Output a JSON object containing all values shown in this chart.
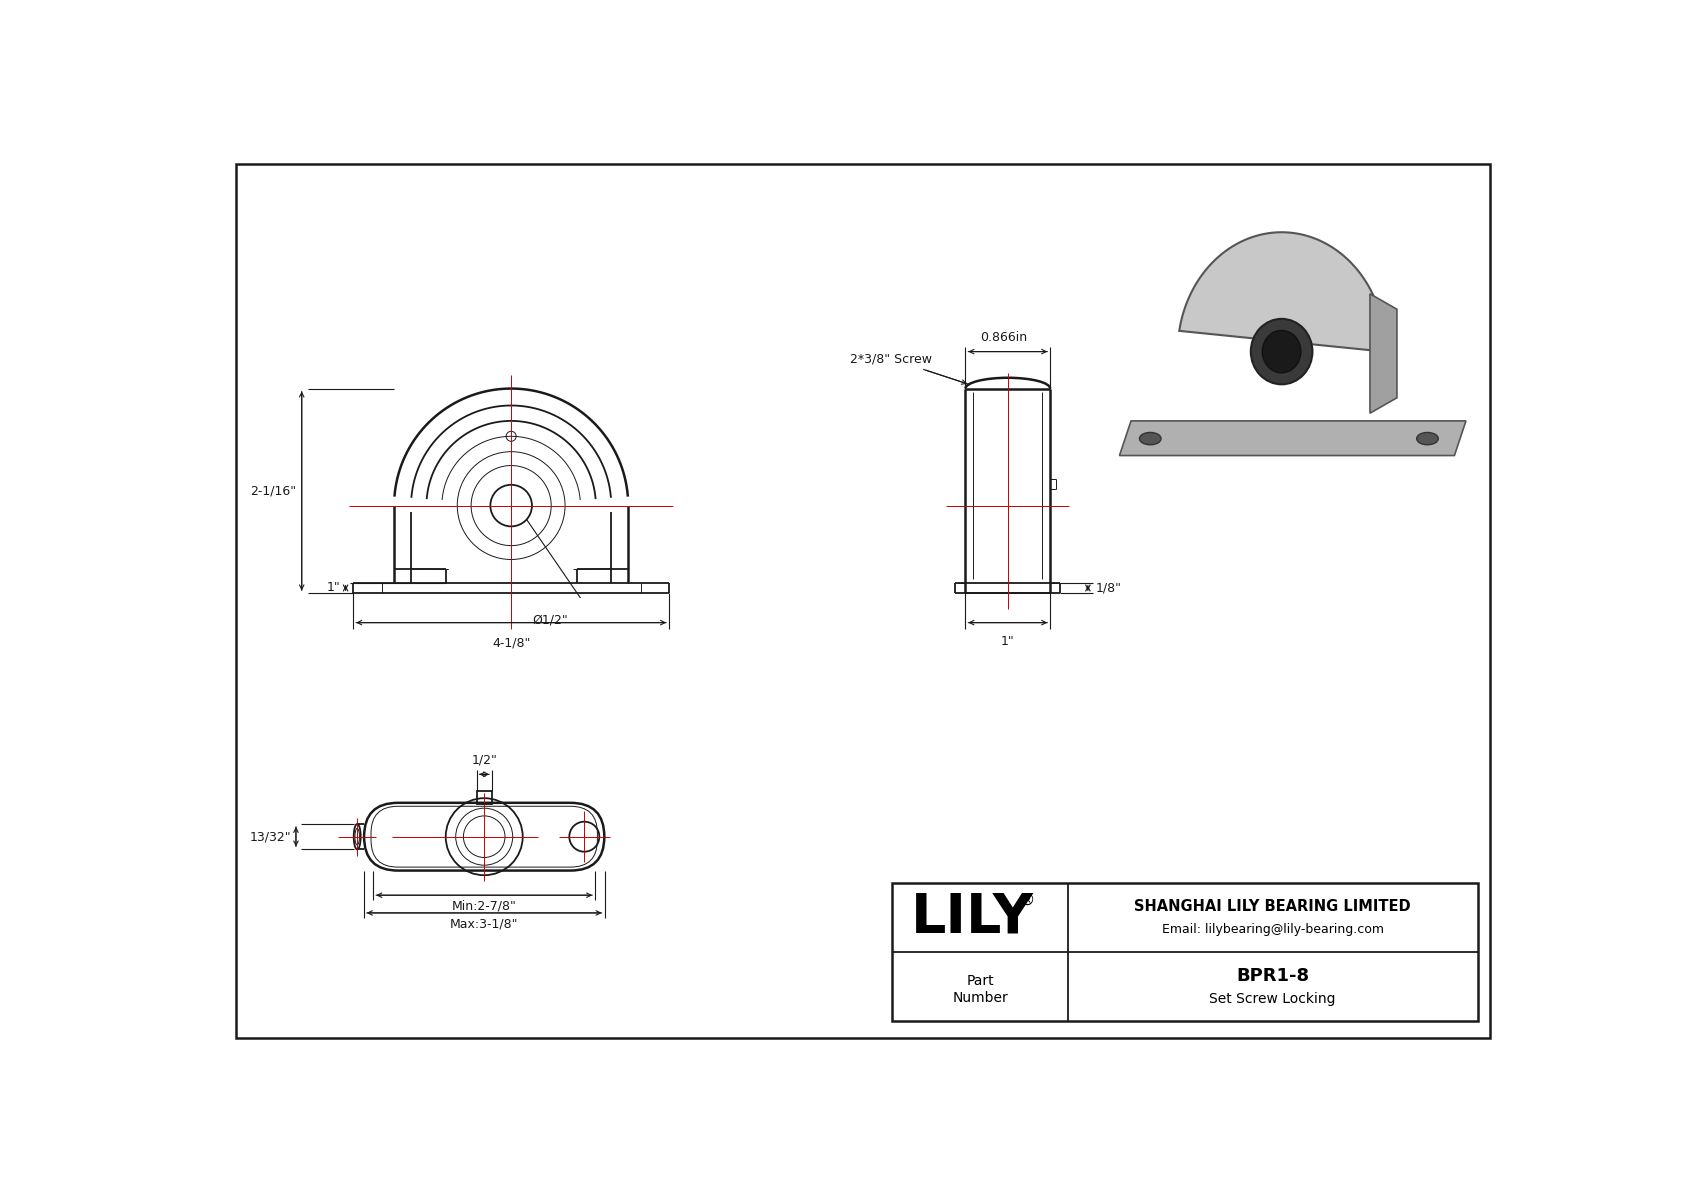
{
  "line_color": "#1a1a1a",
  "red_color": "#cc0000",
  "title_block": {
    "company": "SHANGHAI LILY BEARING LIMITED",
    "email": "Email: lilybearing@lily-bearing.com",
    "part_label": "Part\nNumber",
    "part_number": "BPR1-8",
    "description": "Set Screw Locking",
    "logo": "LILY"
  },
  "dimensions": {
    "total_height": "2-1/16\"",
    "base_height": "1\"",
    "bore_dia": "Ø1/2\"",
    "total_width": "4-1/8\"",
    "side_height": "1/8\"",
    "side_width": "1\"",
    "top_width": "1/2\"",
    "top_shaft": "13/32\"",
    "top_min": "Min:2-7/8\"",
    "top_max": "Max:3-1/8\"",
    "screw": "2*3/8\" Screw",
    "top_dim": "0.866in"
  }
}
